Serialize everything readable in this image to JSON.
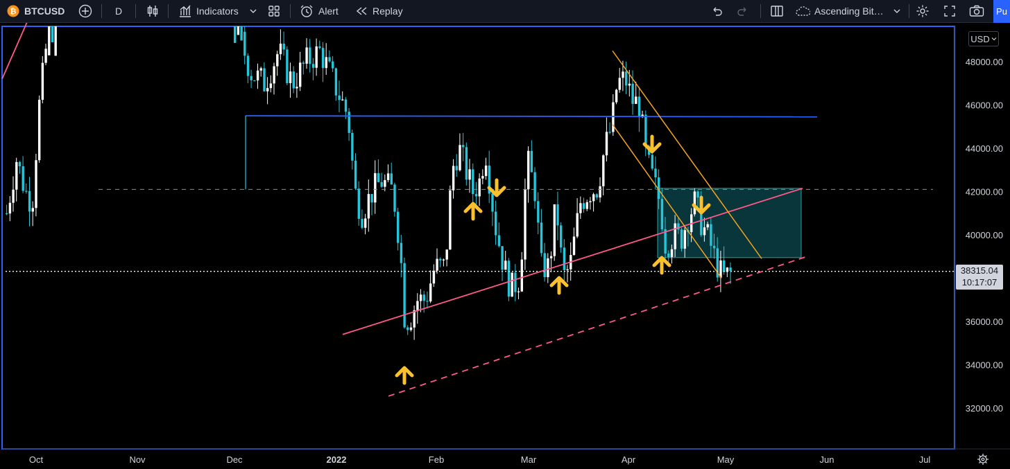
{
  "toolbar": {
    "symbol": "BTCUSD",
    "interval": "D",
    "indicators_label": "Indicators",
    "alert_label": "Alert",
    "replay_label": "Replay",
    "layout_name": "Ascending Bit…",
    "publish_label": "Pu"
  },
  "currency": "USD",
  "price_label": {
    "price": "38315.04",
    "countdown": "10:17:07"
  },
  "colors": {
    "up_candle": "#ffffff",
    "down_candle": "#26c6da",
    "support_line": "#ff5a8a",
    "resistance_line": "#2962ff",
    "channel_line": "#f5a623",
    "arrow": "#fbc02d",
    "zone_fill": "#0b3f45"
  },
  "chart_data": {
    "type": "candlestick",
    "symbol": "BTCUSD",
    "interval": "D",
    "y_ticks": [
      "48000.00",
      "46000.00",
      "44000.00",
      "42000.00",
      "40000.00",
      "36000.00",
      "34000.00",
      "32000.00"
    ],
    "x_ticks": [
      "Oct",
      "Nov",
      "Dec",
      "2022",
      "Feb",
      "Mar",
      "Apr",
      "May",
      "Jun",
      "Jul"
    ],
    "ylim": [
      30500,
      49500
    ],
    "last_price": 38315.04,
    "grid": false
  }
}
